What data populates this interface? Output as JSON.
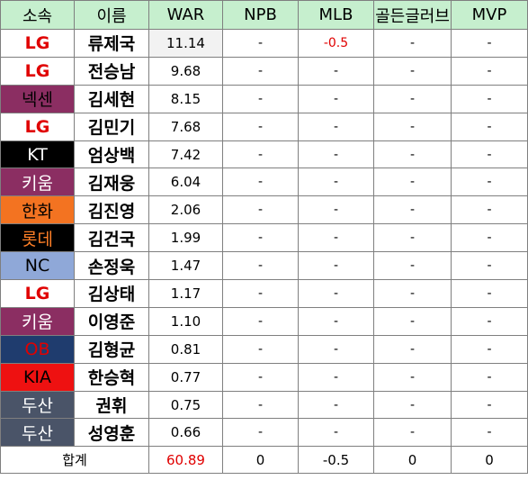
{
  "headers": [
    "소속",
    "이름",
    "WAR",
    "NPB",
    "MLB",
    "골든글러브",
    "MVP"
  ],
  "colors": {
    "header_bg": "#c6efce",
    "lg_text": "#e00000",
    "kiwoom_bg": "#8b2e62",
    "kt_bg": "#000000",
    "hanwha_bg": "#f37321",
    "lotte_bg": "#000000",
    "lotte_text": "#ff7f27",
    "nc_bg": "#8fa8d8",
    "ob_bg": "#1f3c6e",
    "ob_text": "#e00000",
    "kia_bg": "#ee1111",
    "doosan_bg": "#4a5468"
  },
  "rows": [
    {
      "team": "LG",
      "name": "류제국",
      "war": "11.14",
      "npb": "-",
      "mlb": "-0.5",
      "gg": "-",
      "mvp": "-"
    },
    {
      "team": "LG",
      "name": "전승남",
      "war": "9.68",
      "npb": "-",
      "mlb": "-",
      "gg": "-",
      "mvp": "-"
    },
    {
      "team": "넥센",
      "name": "김세현",
      "war": "8.15",
      "npb": "-",
      "mlb": "-",
      "gg": "-",
      "mvp": "-"
    },
    {
      "team": "LG",
      "name": "김민기",
      "war": "7.68",
      "npb": "-",
      "mlb": "-",
      "gg": "-",
      "mvp": "-"
    },
    {
      "team": "KT",
      "name": "엄상백",
      "war": "7.42",
      "npb": "-",
      "mlb": "-",
      "gg": "-",
      "mvp": "-"
    },
    {
      "team": "키움",
      "name": "김재웅",
      "war": "6.04",
      "npb": "-",
      "mlb": "-",
      "gg": "-",
      "mvp": "-"
    },
    {
      "team": "한화",
      "name": "김진영",
      "war": "2.06",
      "npb": "-",
      "mlb": "-",
      "gg": "-",
      "mvp": "-"
    },
    {
      "team": "롯데",
      "name": "김건국",
      "war": "1.99",
      "npb": "-",
      "mlb": "-",
      "gg": "-",
      "mvp": "-"
    },
    {
      "team": "NC",
      "name": "손정욱",
      "war": "1.47",
      "npb": "-",
      "mlb": "-",
      "gg": "-",
      "mvp": "-"
    },
    {
      "team": "LG",
      "name": "김상태",
      "war": "1.17",
      "npb": "-",
      "mlb": "-",
      "gg": "-",
      "mvp": "-"
    },
    {
      "team": "키움",
      "name": "이영준",
      "war": "1.10",
      "npb": "-",
      "mlb": "-",
      "gg": "-",
      "mvp": "-"
    },
    {
      "team": "OB",
      "name": "김형균",
      "war": "0.81",
      "npb": "-",
      "mlb": "-",
      "gg": "-",
      "mvp": "-"
    },
    {
      "team": "KIA",
      "name": "한승혁",
      "war": "0.77",
      "npb": "-",
      "mlb": "-",
      "gg": "-",
      "mvp": "-"
    },
    {
      "team": "두산",
      "name": "권휘",
      "war": "0.75",
      "npb": "-",
      "mlb": "-",
      "gg": "-",
      "mvp": "-"
    },
    {
      "team": "두산",
      "name": "성영훈",
      "war": "0.66",
      "npb": "-",
      "mlb": "-",
      "gg": "-",
      "mvp": "-"
    }
  ],
  "total": {
    "label": "합계",
    "war": "60.89",
    "npb": "0",
    "mlb": "-0.5",
    "gg": "0",
    "mvp": "0"
  }
}
